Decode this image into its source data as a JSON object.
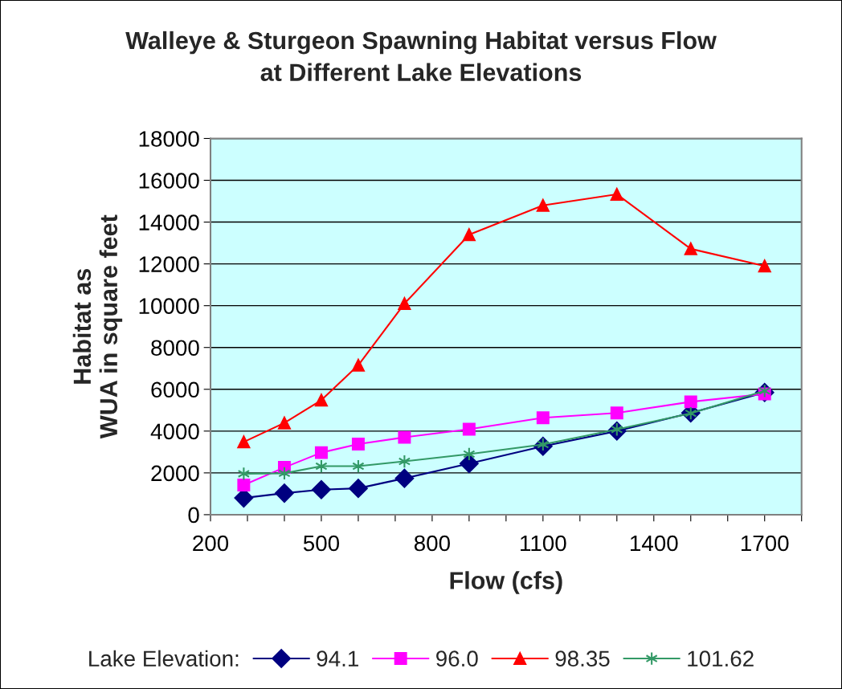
{
  "chart_data": {
    "type": "line",
    "title": "Walleye & Sturgeon Spawning Habitat versus Flow\nat Different Lake Elevations",
    "xlabel": "Flow (cfs)",
    "ylabel": "Habitat as\nWUA in square feet",
    "legend_title": "Lake Elevation:",
    "legend": "bottom",
    "grid": "y",
    "x": [
      290,
      400,
      500,
      600,
      725,
      900,
      1100,
      1300,
      1500,
      1700
    ],
    "xlim": [
      200,
      1800
    ],
    "ylim": [
      0,
      18000
    ],
    "xticks": [
      200,
      {
        "value": 300,
        "label": null
      },
      {
        "value": 400,
        "label": null
      },
      500,
      {
        "value": 600,
        "label": null
      },
      {
        "value": 700,
        "label": null
      },
      800,
      {
        "value": 900,
        "label": null
      },
      {
        "value": 1000,
        "label": null
      },
      1100,
      {
        "value": 1200,
        "label": null
      },
      {
        "value": 1300,
        "label": null
      },
      1400,
      {
        "value": 1500,
        "label": null
      },
      {
        "value": 1600,
        "label": null
      },
      1700,
      {
        "value": 1800,
        "label": null
      }
    ],
    "yticks": [
      0,
      2000,
      4000,
      6000,
      8000,
      10000,
      12000,
      14000,
      16000,
      18000
    ],
    "series": [
      {
        "name": "94.1",
        "color": "#000080",
        "marker": "diamond",
        "values": [
          800,
          1030,
          1200,
          1260,
          1740,
          2450,
          3270,
          4000,
          4870,
          5850
        ]
      },
      {
        "name": "96.0",
        "color": "#ff00ff",
        "marker": "square",
        "values": [
          1420,
          2260,
          2970,
          3380,
          3700,
          4090,
          4640,
          4870,
          5400,
          5780
        ]
      },
      {
        "name": "98.35",
        "color": "#ff0000",
        "marker": "triangle",
        "values": [
          3480,
          4390,
          5480,
          7150,
          10100,
          13400,
          14800,
          15330,
          12720,
          11900
        ]
      },
      {
        "name": "101.62",
        "color": "#339966",
        "marker": "cross",
        "values": [
          1960,
          1980,
          2320,
          2320,
          2550,
          2900,
          3360,
          4080,
          4850,
          5920
        ]
      }
    ]
  }
}
